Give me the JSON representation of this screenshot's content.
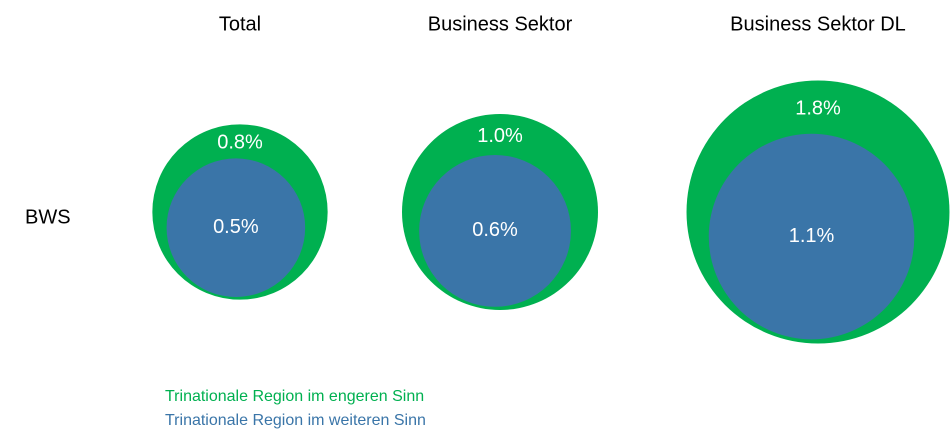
{
  "chart_data": {
    "type": "bubble",
    "categories": [
      "Total",
      "Business Sektor",
      "Business Sektor DL"
    ],
    "row_label": "BWS",
    "series": [
      {
        "name": "Trinationale Region im engeren Sinn",
        "color": "#00b050",
        "values": [
          0.8,
          1.0,
          1.8
        ],
        "value_labels": [
          "0.8%",
          "1.0%",
          "1.8%"
        ]
      },
      {
        "name": "Trinationale Region im weiteren Sinn",
        "color": "#3a75a8",
        "values": [
          0.5,
          0.6,
          1.1
        ],
        "value_labels": [
          "0.5%",
          "0.6%",
          "1.1%"
        ]
      }
    ]
  }
}
